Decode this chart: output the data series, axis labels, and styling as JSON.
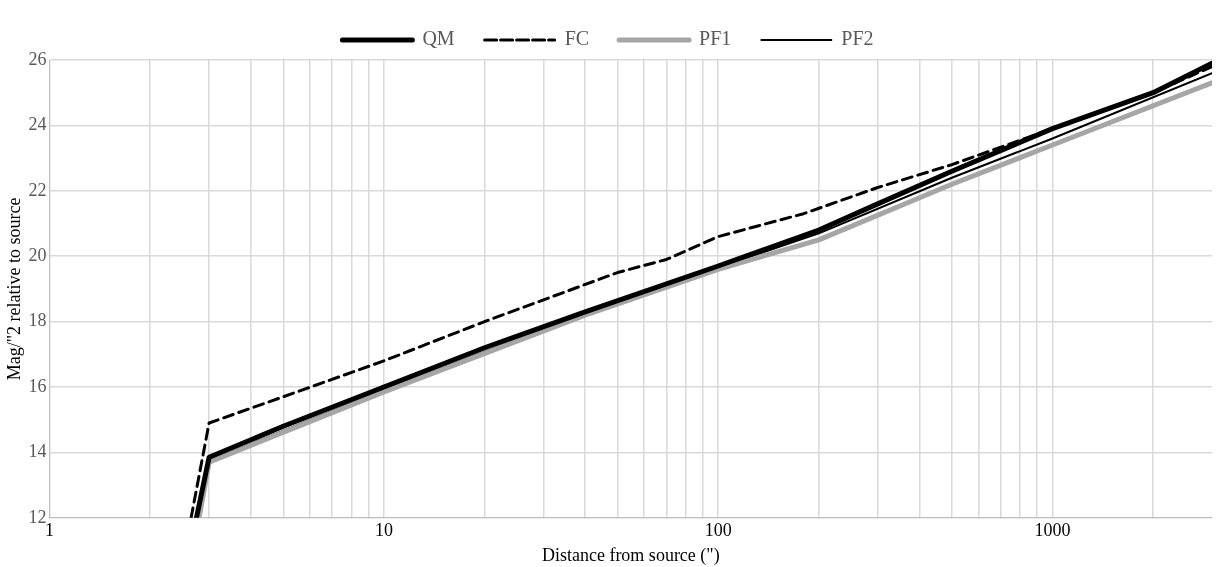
{
  "chart_data": {
    "type": "line",
    "xlabel": "Distance from source (\")",
    "ylabel": "Mag/\"2 relative to source",
    "log": "x",
    "grid": true,
    "legend": "top",
    "marker": "none",
    "xlim": [
      1,
      3000
    ],
    "ylim": [
      12,
      26
    ],
    "xticks": [
      1,
      {
        "value": 2,
        "label": null
      },
      {
        "value": 3,
        "label": null
      },
      {
        "value": 4,
        "label": null
      },
      {
        "value": 5,
        "label": null
      },
      {
        "value": 6,
        "label": null
      },
      {
        "value": 7,
        "label": null
      },
      {
        "value": 8,
        "label": null
      },
      {
        "value": 9,
        "label": null
      },
      10,
      {
        "value": 20,
        "label": null
      },
      {
        "value": 30,
        "label": null
      },
      {
        "value": 40,
        "label": null
      },
      {
        "value": 50,
        "label": null
      },
      {
        "value": 60,
        "label": null
      },
      {
        "value": 70,
        "label": null
      },
      {
        "value": 80,
        "label": null
      },
      {
        "value": 90,
        "label": null
      },
      100,
      {
        "value": 200,
        "label": null
      },
      {
        "value": 300,
        "label": null
      },
      {
        "value": 400,
        "label": null
      },
      {
        "value": 500,
        "label": null
      },
      {
        "value": 600,
        "label": null
      },
      {
        "value": 700,
        "label": null
      },
      {
        "value": 800,
        "label": null
      },
      {
        "value": 900,
        "label": null
      },
      1000,
      {
        "value": 2000,
        "label": null
      }
    ],
    "yticks": [
      12,
      14,
      16,
      18,
      20,
      22,
      24,
      26
    ],
    "series": [
      {
        "name": "QM",
        "color": "#000000",
        "line_style": "solid",
        "x": [
          2.75,
          3,
          5,
          10,
          20,
          40,
          100,
          200,
          300,
          500,
          1000,
          2000,
          3000
        ],
        "values": [
          12,
          13.85,
          14.8,
          16,
          17.2,
          18.3,
          19.7,
          20.8,
          21.6,
          22.6,
          23.9,
          25,
          25.9
        ]
      },
      {
        "name": "FC",
        "color": "#000000",
        "line_style": "dashed",
        "x": [
          2.65,
          3,
          5,
          10,
          20,
          50,
          70,
          100,
          180,
          300,
          500,
          1000,
          2000,
          3000
        ],
        "values": [
          12,
          14.9,
          15.7,
          16.8,
          18,
          19.5,
          19.9,
          20.6,
          21.3,
          22.1,
          22.8,
          23.9,
          25,
          25.8
        ]
      },
      {
        "name": "PF1",
        "color": "#a6a6a6",
        "line_style": "solid",
        "x": [
          2.8,
          3,
          10,
          40,
          100,
          200,
          500,
          1000,
          3000
        ],
        "values": [
          12,
          13.7,
          15.85,
          18.2,
          19.6,
          20.5,
          22.2,
          23.4,
          25.3
        ]
      },
      {
        "name": "PF2",
        "color": "#000000",
        "line_style": "solid",
        "x": [
          2.78,
          3,
          10,
          40,
          100,
          200,
          500,
          1000,
          3000
        ],
        "values": [
          12,
          13.75,
          15.9,
          18.25,
          19.65,
          20.7,
          22.4,
          23.6,
          25.6
        ]
      }
    ]
  }
}
